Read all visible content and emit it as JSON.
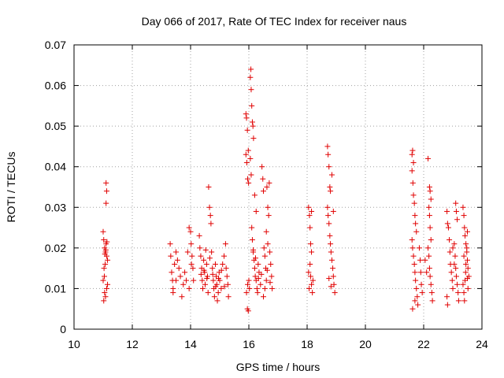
{
  "chart_data": {
    "type": "scatter",
    "title": "Day 066 of 2017, Rate Of TEC Index for receiver naus",
    "xlabel": "GPS time / hours",
    "ylabel": "ROTI / TECUs",
    "xlim": [
      10,
      24
    ],
    "ylim": [
      0,
      0.07
    ],
    "xticks": [
      10,
      12,
      14,
      16,
      18,
      20,
      22,
      24
    ],
    "xtick_labels": [
      "10",
      "12",
      "14",
      "16",
      "18",
      "20",
      "22",
      "24"
    ],
    "yticks": [
      0,
      0.01,
      0.02,
      0.03,
      0.04,
      0.05,
      0.06,
      0.07
    ],
    "ytick_labels": [
      "0",
      "0.01",
      "0.02",
      "0.03",
      "0.04",
      "0.05",
      "0.06",
      "0.07"
    ],
    "grid": true,
    "marker": "+",
    "marker_color": "#e00000",
    "series": [
      {
        "points": [
          [
            11.0,
            0.024
          ],
          [
            11.02,
            0.022
          ],
          [
            11.05,
            0.02
          ],
          [
            11.08,
            0.019
          ],
          [
            11.1,
            0.021
          ],
          [
            11.12,
            0.018
          ],
          [
            11.15,
            0.017
          ],
          [
            11.03,
            0.015
          ],
          [
            11.07,
            0.016
          ],
          [
            11.1,
            0.036
          ],
          [
            11.12,
            0.034
          ],
          [
            11.1,
            0.031
          ],
          [
            11.05,
            0.009
          ],
          [
            11.08,
            0.008
          ],
          [
            11.02,
            0.007
          ],
          [
            11.12,
            0.01
          ],
          [
            11.15,
            0.011
          ],
          [
            11.0,
            0.012
          ],
          [
            11.04,
            0.013
          ],
          [
            11.09,
            0.0195
          ],
          [
            11.13,
            0.0215
          ],
          [
            11.06,
            0.0185
          ],
          [
            13.3,
            0.021
          ],
          [
            13.32,
            0.018
          ],
          [
            13.35,
            0.014
          ],
          [
            13.38,
            0.012
          ],
          [
            13.4,
            0.01
          ],
          [
            13.45,
            0.016
          ],
          [
            13.5,
            0.019
          ],
          [
            13.55,
            0.017
          ],
          [
            13.6,
            0.015
          ],
          [
            13.65,
            0.013
          ],
          [
            13.7,
            0.008
          ],
          [
            13.75,
            0.011
          ],
          [
            13.8,
            0.014
          ],
          [
            13.85,
            0.012
          ],
          [
            13.9,
            0.019
          ],
          [
            13.95,
            0.025
          ],
          [
            14.0,
            0.024
          ],
          [
            14.02,
            0.021
          ],
          [
            14.05,
            0.018
          ],
          [
            14.08,
            0.015
          ],
          [
            14.1,
            0.012
          ],
          [
            13.4,
            0.009
          ],
          [
            13.5,
            0.012
          ],
          [
            13.95,
            0.01
          ],
          [
            14.03,
            0.016
          ],
          [
            14.3,
            0.023
          ],
          [
            14.32,
            0.02
          ],
          [
            14.35,
            0.018
          ],
          [
            14.38,
            0.015
          ],
          [
            14.4,
            0.012
          ],
          [
            14.42,
            0.01
          ],
          [
            14.45,
            0.017
          ],
          [
            14.48,
            0.014
          ],
          [
            14.5,
            0.011
          ],
          [
            14.52,
            0.0195
          ],
          [
            14.55,
            0.016
          ],
          [
            14.58,
            0.013
          ],
          [
            14.6,
            0.009
          ],
          [
            14.62,
            0.035
          ],
          [
            14.65,
            0.03
          ],
          [
            14.68,
            0.028
          ],
          [
            14.7,
            0.026
          ],
          [
            14.72,
            0.019
          ],
          [
            14.75,
            0.015
          ],
          [
            14.78,
            0.012
          ],
          [
            14.8,
            0.01
          ],
          [
            14.82,
            0.008
          ],
          [
            14.85,
            0.016
          ],
          [
            14.88,
            0.013
          ],
          [
            14.9,
            0.011
          ],
          [
            14.92,
            0.007
          ],
          [
            14.95,
            0.009
          ],
          [
            14.98,
            0.014
          ],
          [
            15.0,
            0.012
          ],
          [
            15.05,
            0.01
          ],
          [
            15.1,
            0.016
          ],
          [
            15.15,
            0.018
          ],
          [
            15.2,
            0.021
          ],
          [
            15.22,
            0.015
          ],
          [
            15.25,
            0.013
          ],
          [
            15.28,
            0.011
          ],
          [
            15.3,
            0.008
          ],
          [
            14.36,
            0.0135
          ],
          [
            14.46,
            0.0145
          ],
          [
            14.56,
            0.0125
          ],
          [
            14.66,
            0.0175
          ],
          [
            14.76,
            0.0135
          ],
          [
            14.86,
            0.0105
          ],
          [
            14.96,
            0.0125
          ],
          [
            15.06,
            0.0145
          ],
          [
            15.16,
            0.0105
          ],
          [
            15.9,
            0.053
          ],
          [
            15.92,
            0.052
          ],
          [
            15.95,
            0.049
          ],
          [
            15.98,
            0.044
          ],
          [
            15.9,
            0.043
          ],
          [
            15.93,
            0.041
          ],
          [
            15.96,
            0.037
          ],
          [
            15.99,
            0.036
          ],
          [
            16.0,
            0.012
          ],
          [
            16.02,
            0.01
          ],
          [
            15.95,
            0.005
          ],
          [
            15.98,
            0.0045
          ],
          [
            15.92,
            0.009
          ],
          [
            15.96,
            0.011
          ],
          [
            16.05,
            0.062
          ],
          [
            16.07,
            0.064
          ],
          [
            16.08,
            0.059
          ],
          [
            16.1,
            0.055
          ],
          [
            16.12,
            0.051
          ],
          [
            16.14,
            0.05
          ],
          [
            16.16,
            0.047
          ],
          [
            16.05,
            0.042
          ],
          [
            16.08,
            0.038
          ],
          [
            16.1,
            0.025
          ],
          [
            16.12,
            0.022
          ],
          [
            16.15,
            0.019
          ],
          [
            16.18,
            0.017
          ],
          [
            16.2,
            0.015
          ],
          [
            16.22,
            0.013
          ],
          [
            16.25,
            0.012
          ],
          [
            16.28,
            0.01
          ],
          [
            16.3,
            0.009
          ],
          [
            16.32,
            0.016
          ],
          [
            16.35,
            0.014
          ],
          [
            16.4,
            0.011
          ],
          [
            16.45,
            0.04
          ],
          [
            16.48,
            0.037
          ],
          [
            16.5,
            0.034
          ],
          [
            16.52,
            0.02
          ],
          [
            16.55,
            0.018
          ],
          [
            16.58,
            0.015
          ],
          [
            16.6,
            0.012
          ],
          [
            16.62,
            0.035
          ],
          [
            16.65,
            0.03
          ],
          [
            16.68,
            0.028
          ],
          [
            16.7,
            0.036
          ],
          [
            16.72,
            0.019
          ],
          [
            16.75,
            0.016
          ],
          [
            16.78,
            0.013
          ],
          [
            16.8,
            0.01
          ],
          [
            16.5,
            0.008
          ],
          [
            16.55,
            0.01
          ],
          [
            16.6,
            0.024
          ],
          [
            16.65,
            0.021
          ],
          [
            16.2,
            0.033
          ],
          [
            16.25,
            0.029
          ],
          [
            16.15,
            0.0195
          ],
          [
            16.23,
            0.0175
          ],
          [
            16.33,
            0.0125
          ],
          [
            16.43,
            0.0135
          ],
          [
            16.63,
            0.0145
          ],
          [
            16.73,
            0.0115
          ],
          [
            18.05,
            0.03
          ],
          [
            18.08,
            0.028
          ],
          [
            18.1,
            0.025
          ],
          [
            18.12,
            0.021
          ],
          [
            18.15,
            0.019
          ],
          [
            18.1,
            0.016
          ],
          [
            18.12,
            0.013
          ],
          [
            18.15,
            0.011
          ],
          [
            18.18,
            0.009
          ],
          [
            18.2,
            0.012
          ],
          [
            18.15,
            0.029
          ],
          [
            18.05,
            0.014
          ],
          [
            18.07,
            0.01
          ],
          [
            18.7,
            0.045
          ],
          [
            18.72,
            0.043
          ],
          [
            18.75,
            0.04
          ],
          [
            18.78,
            0.035
          ],
          [
            18.8,
            0.034
          ],
          [
            18.7,
            0.03
          ],
          [
            18.72,
            0.028
          ],
          [
            18.75,
            0.026
          ],
          [
            18.78,
            0.023
          ],
          [
            18.8,
            0.021
          ],
          [
            18.82,
            0.019
          ],
          [
            18.85,
            0.017
          ],
          [
            18.88,
            0.015
          ],
          [
            18.9,
            0.013
          ],
          [
            18.92,
            0.011
          ],
          [
            18.95,
            0.009
          ],
          [
            18.85,
            0.038
          ],
          [
            18.9,
            0.029
          ],
          [
            18.75,
            0.0125
          ],
          [
            18.82,
            0.0105
          ],
          [
            21.6,
            0.043
          ],
          [
            21.62,
            0.044
          ],
          [
            21.65,
            0.041
          ],
          [
            21.6,
            0.039
          ],
          [
            21.63,
            0.036
          ],
          [
            21.65,
            0.033
          ],
          [
            21.68,
            0.031
          ],
          [
            21.7,
            0.028
          ],
          [
            21.72,
            0.026
          ],
          [
            21.75,
            0.024
          ],
          [
            21.6,
            0.022
          ],
          [
            21.62,
            0.02
          ],
          [
            21.65,
            0.018
          ],
          [
            21.68,
            0.016
          ],
          [
            21.7,
            0.014
          ],
          [
            21.72,
            0.012
          ],
          [
            21.75,
            0.01
          ],
          [
            21.78,
            0.008
          ],
          [
            21.8,
            0.006
          ],
          [
            21.62,
            0.005
          ],
          [
            21.85,
            0.02
          ],
          [
            21.88,
            0.017
          ],
          [
            21.9,
            0.014
          ],
          [
            21.92,
            0.011
          ],
          [
            21.95,
            0.009
          ],
          [
            21.7,
            0.007
          ],
          [
            22.15,
            0.042
          ],
          [
            22.2,
            0.035
          ],
          [
            22.22,
            0.034
          ],
          [
            22.25,
            0.032
          ],
          [
            22.18,
            0.03
          ],
          [
            22.2,
            0.028
          ],
          [
            22.22,
            0.025
          ],
          [
            22.25,
            0.022
          ],
          [
            22.15,
            0.02
          ],
          [
            22.18,
            0.018
          ],
          [
            22.2,
            0.015
          ],
          [
            22.22,
            0.013
          ],
          [
            22.25,
            0.011
          ],
          [
            22.28,
            0.009
          ],
          [
            22.3,
            0.007
          ],
          [
            22.05,
            0.017
          ],
          [
            22.1,
            0.014
          ],
          [
            22.8,
            0.029
          ],
          [
            22.82,
            0.026
          ],
          [
            22.85,
            0.025
          ],
          [
            22.88,
            0.022
          ],
          [
            22.9,
            0.019
          ],
          [
            22.92,
            0.016
          ],
          [
            22.95,
            0.014
          ],
          [
            22.98,
            0.012
          ],
          [
            23.0,
            0.01
          ],
          [
            22.8,
            0.008
          ],
          [
            22.82,
            0.006
          ],
          [
            23.05,
            0.021
          ],
          [
            23.08,
            0.018
          ],
          [
            23.1,
            0.015
          ],
          [
            23.12,
            0.013
          ],
          [
            23.15,
            0.011
          ],
          [
            23.18,
            0.009
          ],
          [
            23.2,
            0.007
          ],
          [
            23.1,
            0.031
          ],
          [
            23.12,
            0.029
          ],
          [
            23.15,
            0.027
          ],
          [
            23.0,
            0.02
          ],
          [
            23.05,
            0.016
          ],
          [
            23.35,
            0.03
          ],
          [
            23.38,
            0.028
          ],
          [
            23.4,
            0.025
          ],
          [
            23.42,
            0.023
          ],
          [
            23.45,
            0.021
          ],
          [
            23.48,
            0.019
          ],
          [
            23.5,
            0.017
          ],
          [
            23.52,
            0.015
          ],
          [
            23.55,
            0.013
          ],
          [
            23.35,
            0.011
          ],
          [
            23.38,
            0.009
          ],
          [
            23.4,
            0.007
          ],
          [
            23.42,
            0.012
          ],
          [
            23.45,
            0.016
          ],
          [
            23.48,
            0.02
          ],
          [
            23.5,
            0.024
          ],
          [
            23.52,
            0.01
          ],
          [
            23.38,
            0.018
          ],
          [
            23.44,
            0.014
          ],
          [
            23.5,
            0.0125
          ]
        ]
      }
    ]
  }
}
